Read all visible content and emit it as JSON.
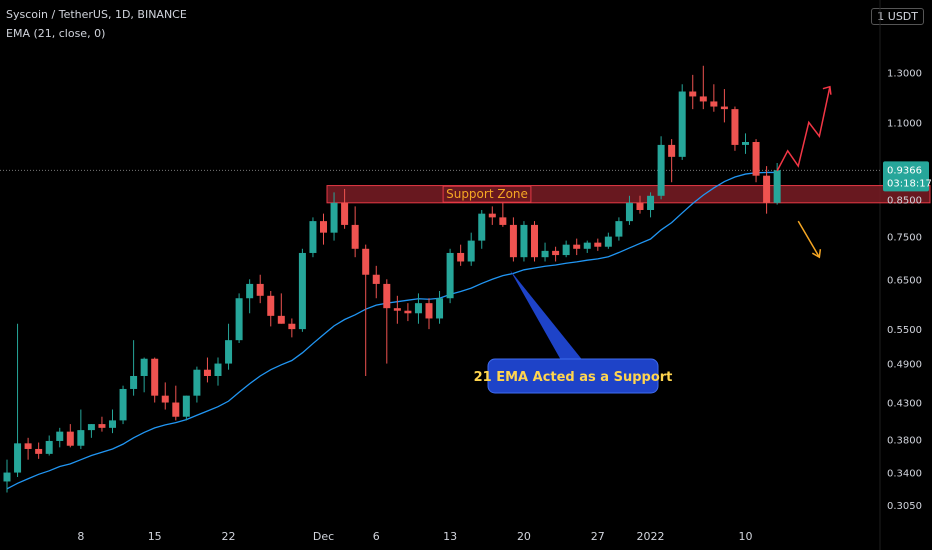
{
  "header": {
    "symbol_line": "Syscoin / TetherUS, 1D, BINANCE",
    "indicator_line": "EMA (21, close, 0)",
    "unit": "1 USDT"
  },
  "price_badge": {
    "price": "0.9366",
    "countdown": "03:18:17"
  },
  "annotations": {
    "support_zone": "Support Zone",
    "ema_callout": "21 EMA Acted as a Support"
  },
  "colors": {
    "up": "#26a69a",
    "down": "#ef5350",
    "ema": "#2196f3",
    "zone_fill": "#7a1c24",
    "zone_border": "#e53945",
    "zone_text": "#f5a623",
    "callout": "#1e43c8",
    "callout_text": "#ffd54f",
    "bull_path": "#f23645",
    "bear_path": "#f5a623"
  },
  "chart_data": {
    "type": "candlestick",
    "y_scale": "log",
    "ylim": [
      0.29,
      1.45
    ],
    "yticks": [
      "1.3000",
      "1.1000",
      "0.8500",
      "0.7500",
      "0.6500",
      "0.5500",
      "0.4900",
      "0.4300",
      "0.3800",
      "0.3400",
      "0.3050"
    ],
    "xticks": [
      "8",
      "15",
      "22",
      "Dec",
      "6",
      "13",
      "20",
      "27",
      "2022",
      "10"
    ],
    "candles": [
      {
        "d": "Nov 1",
        "o": 0.33,
        "h": 0.355,
        "l": 0.318,
        "c": 0.34
      },
      {
        "d": "Nov 2",
        "o": 0.34,
        "h": 0.56,
        "l": 0.335,
        "c": 0.375
      },
      {
        "d": "Nov 3",
        "o": 0.375,
        "h": 0.382,
        "l": 0.355,
        "c": 0.368
      },
      {
        "d": "Nov 4",
        "o": 0.368,
        "h": 0.376,
        "l": 0.356,
        "c": 0.362
      },
      {
        "d": "Nov 5",
        "o": 0.362,
        "h": 0.385,
        "l": 0.36,
        "c": 0.378
      },
      {
        "d": "Nov 6",
        "o": 0.378,
        "h": 0.395,
        "l": 0.37,
        "c": 0.39
      },
      {
        "d": "Nov 7",
        "o": 0.39,
        "h": 0.4,
        "l": 0.37,
        "c": 0.372
      },
      {
        "d": "Nov 8",
        "o": 0.372,
        "h": 0.42,
        "l": 0.368,
        "c": 0.392
      },
      {
        "d": "Nov 9",
        "o": 0.392,
        "h": 0.4,
        "l": 0.382,
        "c": 0.4
      },
      {
        "d": "Nov 10",
        "o": 0.4,
        "h": 0.41,
        "l": 0.39,
        "c": 0.395
      },
      {
        "d": "Nov 11",
        "o": 0.395,
        "h": 0.42,
        "l": 0.388,
        "c": 0.405
      },
      {
        "d": "Nov 12",
        "o": 0.405,
        "h": 0.455,
        "l": 0.4,
        "c": 0.45
      },
      {
        "d": "Nov 13",
        "o": 0.45,
        "h": 0.53,
        "l": 0.44,
        "c": 0.47
      },
      {
        "d": "Nov 14",
        "o": 0.47,
        "h": 0.5,
        "l": 0.445,
        "c": 0.498
      },
      {
        "d": "Nov 15",
        "o": 0.498,
        "h": 0.5,
        "l": 0.43,
        "c": 0.44
      },
      {
        "d": "Nov 16",
        "o": 0.44,
        "h": 0.46,
        "l": 0.42,
        "c": 0.43
      },
      {
        "d": "Nov 17",
        "o": 0.43,
        "h": 0.455,
        "l": 0.405,
        "c": 0.41
      },
      {
        "d": "Nov 18",
        "o": 0.41,
        "h": 0.44,
        "l": 0.405,
        "c": 0.44
      },
      {
        "d": "Nov 19",
        "o": 0.44,
        "h": 0.485,
        "l": 0.43,
        "c": 0.48
      },
      {
        "d": "Nov 20",
        "o": 0.48,
        "h": 0.5,
        "l": 0.46,
        "c": 0.47
      },
      {
        "d": "Nov 21",
        "o": 0.47,
        "h": 0.5,
        "l": 0.455,
        "c": 0.49
      },
      {
        "d": "Nov 22",
        "o": 0.49,
        "h": 0.56,
        "l": 0.48,
        "c": 0.53
      },
      {
        "d": "Nov 23",
        "o": 0.53,
        "h": 0.62,
        "l": 0.525,
        "c": 0.61
      },
      {
        "d": "Nov 24",
        "o": 0.61,
        "h": 0.65,
        "l": 0.58,
        "c": 0.64
      },
      {
        "d": "Nov 25",
        "o": 0.64,
        "h": 0.66,
        "l": 0.6,
        "c": 0.615
      },
      {
        "d": "Nov 26",
        "o": 0.615,
        "h": 0.625,
        "l": 0.555,
        "c": 0.575
      },
      {
        "d": "Nov 27",
        "o": 0.575,
        "h": 0.62,
        "l": 0.56,
        "c": 0.56
      },
      {
        "d": "Nov 28",
        "o": 0.56,
        "h": 0.57,
        "l": 0.535,
        "c": 0.55
      },
      {
        "d": "Nov 29",
        "o": 0.55,
        "h": 0.72,
        "l": 0.545,
        "c": 0.71
      },
      {
        "d": "Nov 30",
        "o": 0.71,
        "h": 0.8,
        "l": 0.7,
        "c": 0.79
      },
      {
        "d": "Dec 1",
        "o": 0.79,
        "h": 0.81,
        "l": 0.73,
        "c": 0.76
      },
      {
        "d": "Dec 2",
        "o": 0.76,
        "h": 0.87,
        "l": 0.74,
        "c": 0.84
      },
      {
        "d": "Dec 3",
        "o": 0.84,
        "h": 0.88,
        "l": 0.77,
        "c": 0.78
      },
      {
        "d": "Dec 4",
        "o": 0.78,
        "h": 0.83,
        "l": 0.7,
        "c": 0.72
      },
      {
        "d": "Dec 5",
        "o": 0.72,
        "h": 0.73,
        "l": 0.47,
        "c": 0.66
      },
      {
        "d": "Dec 6",
        "o": 0.66,
        "h": 0.68,
        "l": 0.61,
        "c": 0.64
      },
      {
        "d": "Dec 7",
        "o": 0.64,
        "h": 0.65,
        "l": 0.49,
        "c": 0.59
      },
      {
        "d": "Dec 8",
        "o": 0.59,
        "h": 0.615,
        "l": 0.56,
        "c": 0.585
      },
      {
        "d": "Dec 9",
        "o": 0.585,
        "h": 0.6,
        "l": 0.565,
        "c": 0.58
      },
      {
        "d": "Dec 10",
        "o": 0.58,
        "h": 0.62,
        "l": 0.56,
        "c": 0.6
      },
      {
        "d": "Dec 11",
        "o": 0.6,
        "h": 0.61,
        "l": 0.55,
        "c": 0.57
      },
      {
        "d": "Dec 12",
        "o": 0.57,
        "h": 0.625,
        "l": 0.56,
        "c": 0.61
      },
      {
        "d": "Dec 13",
        "o": 0.61,
        "h": 0.72,
        "l": 0.6,
        "c": 0.71
      },
      {
        "d": "Dec 14",
        "o": 0.71,
        "h": 0.73,
        "l": 0.68,
        "c": 0.69
      },
      {
        "d": "Dec 15",
        "o": 0.69,
        "h": 0.76,
        "l": 0.68,
        "c": 0.74
      },
      {
        "d": "Dec 16",
        "o": 0.74,
        "h": 0.82,
        "l": 0.72,
        "c": 0.81
      },
      {
        "d": "Dec 17",
        "o": 0.81,
        "h": 0.83,
        "l": 0.78,
        "c": 0.8
      },
      {
        "d": "Dec 18",
        "o": 0.8,
        "h": 0.84,
        "l": 0.775,
        "c": 0.78
      },
      {
        "d": "Dec 19",
        "o": 0.78,
        "h": 0.8,
        "l": 0.69,
        "c": 0.7
      },
      {
        "d": "Dec 20",
        "o": 0.7,
        "h": 0.79,
        "l": 0.69,
        "c": 0.78
      },
      {
        "d": "Dec 21",
        "o": 0.78,
        "h": 0.79,
        "l": 0.69,
        "c": 0.7
      },
      {
        "d": "Dec 22",
        "o": 0.7,
        "h": 0.735,
        "l": 0.69,
        "c": 0.715
      },
      {
        "d": "Dec 23",
        "o": 0.715,
        "h": 0.725,
        "l": 0.69,
        "c": 0.705
      },
      {
        "d": "Dec 24",
        "o": 0.705,
        "h": 0.74,
        "l": 0.7,
        "c": 0.73
      },
      {
        "d": "Dec 25",
        "o": 0.73,
        "h": 0.745,
        "l": 0.705,
        "c": 0.72
      },
      {
        "d": "Dec 26",
        "o": 0.72,
        "h": 0.74,
        "l": 0.71,
        "c": 0.735
      },
      {
        "d": "Dec 27",
        "o": 0.735,
        "h": 0.745,
        "l": 0.715,
        "c": 0.725
      },
      {
        "d": "Dec 28",
        "o": 0.725,
        "h": 0.76,
        "l": 0.72,
        "c": 0.75
      },
      {
        "d": "Dec 29",
        "o": 0.75,
        "h": 0.8,
        "l": 0.74,
        "c": 0.79
      },
      {
        "d": "Dec 30",
        "o": 0.79,
        "h": 0.86,
        "l": 0.78,
        "c": 0.84
      },
      {
        "d": "Dec 31",
        "o": 0.84,
        "h": 0.86,
        "l": 0.81,
        "c": 0.82
      },
      {
        "d": "Jan 1",
        "o": 0.82,
        "h": 0.87,
        "l": 0.8,
        "c": 0.86
      },
      {
        "d": "Jan 2",
        "o": 0.86,
        "h": 1.05,
        "l": 0.85,
        "c": 1.02
      },
      {
        "d": "Jan 3",
        "o": 1.02,
        "h": 1.04,
        "l": 0.9,
        "c": 0.98
      },
      {
        "d": "Jan 4",
        "o": 0.98,
        "h": 1.25,
        "l": 0.97,
        "c": 1.22
      },
      {
        "d": "Jan 5",
        "o": 1.22,
        "h": 1.29,
        "l": 1.15,
        "c": 1.2
      },
      {
        "d": "Jan 6",
        "o": 1.2,
        "h": 1.33,
        "l": 1.15,
        "c": 1.18
      },
      {
        "d": "Jan 7",
        "o": 1.18,
        "h": 1.25,
        "l": 1.14,
        "c": 1.16
      },
      {
        "d": "Jan 8",
        "o": 1.16,
        "h": 1.23,
        "l": 1.1,
        "c": 1.15
      },
      {
        "d": "Jan 9",
        "o": 1.15,
        "h": 1.16,
        "l": 1.0,
        "c": 1.02
      },
      {
        "d": "Jan 10",
        "o": 1.02,
        "h": 1.06,
        "l": 0.99,
        "c": 1.03
      },
      {
        "d": "Jan 11",
        "o": 1.03,
        "h": 1.04,
        "l": 0.9,
        "c": 0.92
      },
      {
        "d": "Jan 12",
        "o": 0.92,
        "h": 0.95,
        "l": 0.81,
        "c": 0.84
      },
      {
        "d": "Jan 13",
        "o": 0.84,
        "h": 0.96,
        "l": 0.835,
        "c": 0.937
      }
    ],
    "ema21": [
      0.322,
      0.328,
      0.333,
      0.338,
      0.342,
      0.347,
      0.35,
      0.355,
      0.36,
      0.364,
      0.368,
      0.374,
      0.382,
      0.389,
      0.395,
      0.399,
      0.402,
      0.406,
      0.412,
      0.418,
      0.424,
      0.432,
      0.445,
      0.458,
      0.47,
      0.48,
      0.488,
      0.495,
      0.508,
      0.524,
      0.54,
      0.556,
      0.568,
      0.577,
      0.588,
      0.596,
      0.6,
      0.603,
      0.606,
      0.609,
      0.608,
      0.61,
      0.618,
      0.624,
      0.631,
      0.641,
      0.65,
      0.658,
      0.663,
      0.671,
      0.675,
      0.679,
      0.682,
      0.686,
      0.689,
      0.693,
      0.696,
      0.701,
      0.711,
      0.722,
      0.733,
      0.744,
      0.767,
      0.786,
      0.812,
      0.838,
      0.862,
      0.883,
      0.902,
      0.916,
      0.925,
      0.929,
      0.93,
      0.93
    ],
    "support_zone": {
      "low": 0.84,
      "high": 0.89
    },
    "current_price": 0.9366,
    "projection_up": [
      [
        0.935,
        "Jan 13"
      ],
      [
        1.0,
        "Jan 14"
      ],
      [
        0.95,
        "Jan 15"
      ],
      [
        1.1,
        "Jan 16"
      ],
      [
        1.05,
        "Jan 17"
      ],
      [
        1.24,
        "Jan 18"
      ]
    ],
    "projection_down": [
      [
        0.79,
        "Jan 15"
      ],
      [
        0.7,
        "Jan 17"
      ]
    ]
  }
}
